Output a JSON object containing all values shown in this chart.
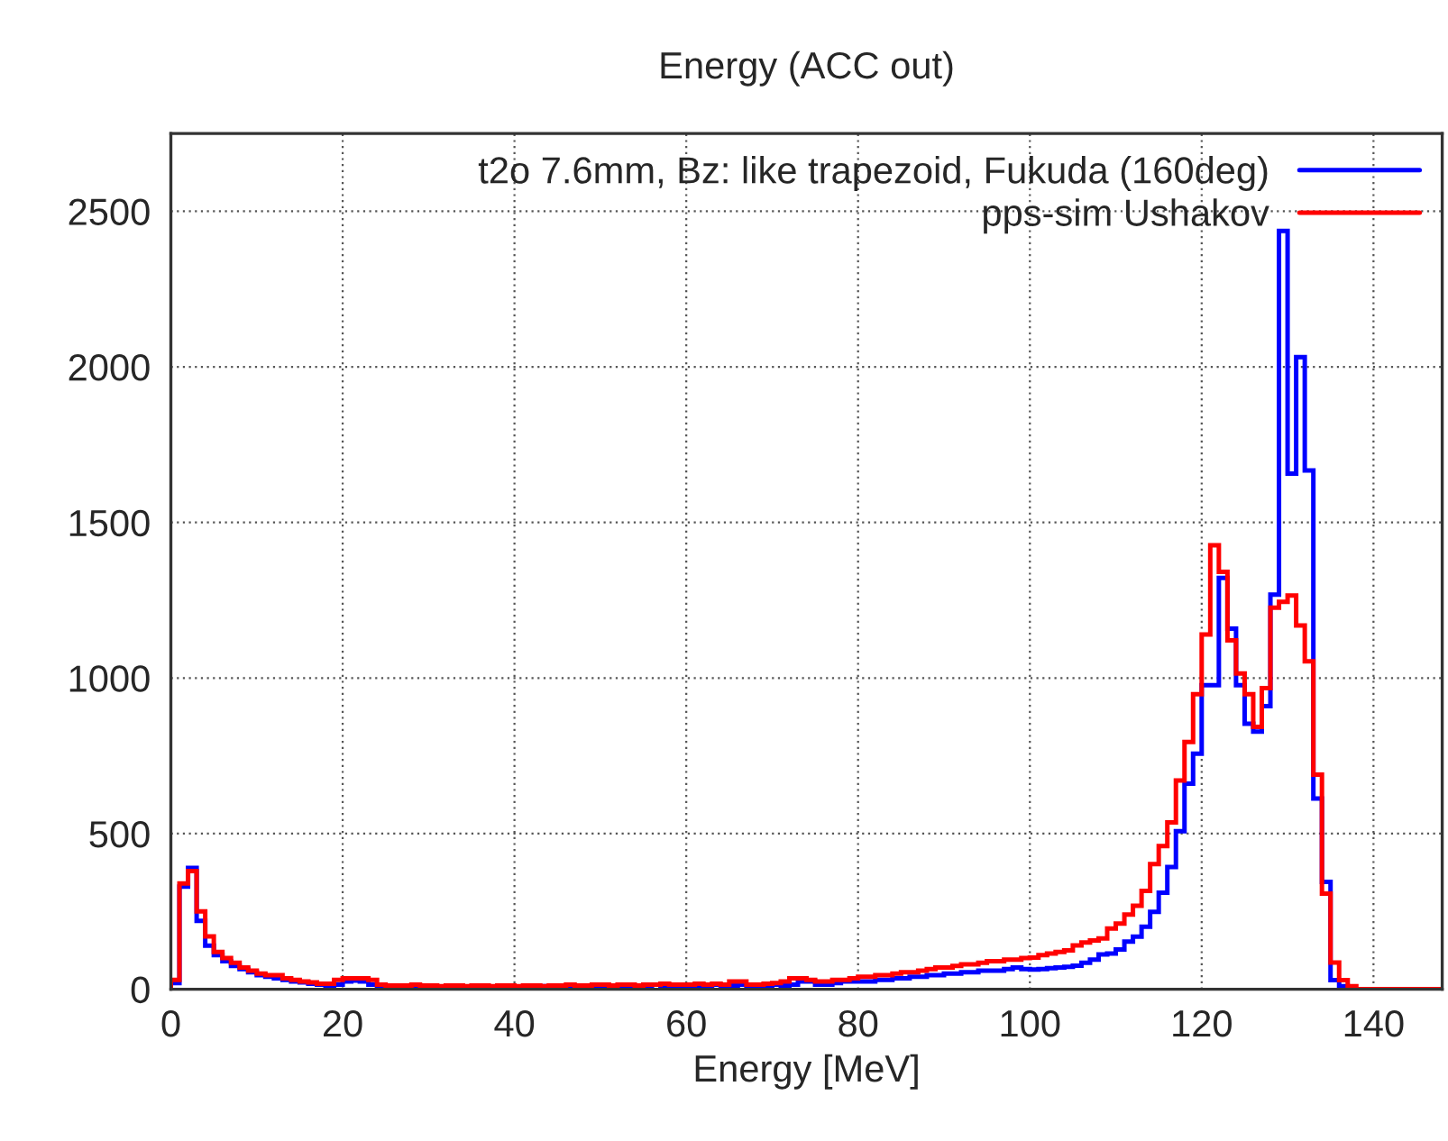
{
  "chart_data": {
    "type": "histogram",
    "title": "Energy (ACC out)",
    "xlabel": "Energy [MeV]",
    "bins": [
      0,
      1,
      2,
      3,
      4,
      5,
      6,
      7,
      8,
      9,
      10,
      11,
      12,
      13,
      14,
      15,
      16,
      17,
      18,
      19,
      20,
      21,
      22,
      23,
      24,
      25,
      26,
      27,
      28,
      29,
      30,
      31,
      32,
      33,
      34,
      35,
      36,
      37,
      38,
      39,
      40,
      41,
      42,
      43,
      44,
      45,
      46,
      47,
      48,
      49,
      50,
      51,
      52,
      53,
      54,
      55,
      56,
      57,
      58,
      59,
      60,
      61,
      62,
      63,
      64,
      65,
      66,
      67,
      68,
      69,
      70,
      71,
      72,
      73,
      74,
      75,
      76,
      77,
      78,
      79,
      80,
      81,
      82,
      83,
      84,
      85,
      86,
      87,
      88,
      89,
      90,
      91,
      92,
      93,
      94,
      95,
      96,
      97,
      98,
      99,
      100,
      101,
      102,
      103,
      104,
      105,
      106,
      107,
      108,
      109,
      110,
      111,
      112,
      113,
      114,
      115,
      116,
      117,
      118,
      119,
      120,
      121,
      122,
      123,
      124,
      125,
      126,
      127,
      128,
      129,
      130,
      131,
      132,
      133,
      134,
      135,
      136,
      137,
      138,
      139,
      140,
      141,
      142,
      143,
      144,
      145,
      146,
      147,
      148
    ],
    "series": [
      {
        "name": "t2o 7.6mm, Bz: like trapezoid, Fukuda (160deg)",
        "color": "#0000ff",
        "values": [
          20,
          330,
          390,
          220,
          140,
          110,
          90,
          75,
          65,
          55,
          45,
          40,
          35,
          30,
          25,
          22,
          18,
          15,
          12,
          15,
          25,
          28,
          25,
          15,
          10,
          8,
          8,
          8,
          8,
          8,
          8,
          8,
          8,
          8,
          8,
          8,
          8,
          8,
          10,
          8,
          8,
          8,
          8,
          10,
          8,
          8,
          10,
          8,
          8,
          10,
          10,
          8,
          10,
          12,
          10,
          10,
          15,
          12,
          10,
          12,
          12,
          10,
          12,
          15,
          12,
          12,
          15,
          12,
          10,
          12,
          15,
          12,
          15,
          25,
          25,
          15,
          15,
          20,
          25,
          25,
          25,
          25,
          30,
          30,
          35,
          35,
          40,
          40,
          45,
          45,
          50,
          50,
          55,
          55,
          60,
          60,
          60,
          65,
          70,
          65,
          63,
          65,
          68,
          70,
          72,
          76,
          85,
          95,
          112,
          115,
          128,
          153,
          169,
          201,
          249,
          310,
          393,
          508,
          661,
          757,
          977,
          977,
          1322,
          1159,
          977,
          853,
          828,
          910,
          1268,
          2437,
          1657,
          2031,
          1667,
          613,
          345,
          29,
          10,
          0,
          0,
          0,
          0,
          0,
          0,
          0,
          0,
          0,
          0,
          0
        ]
      },
      {
        "name": "pps-sim Ushakov",
        "color": "#ff0000",
        "values": [
          30,
          340,
          380,
          250,
          170,
          120,
          100,
          85,
          70,
          60,
          50,
          45,
          45,
          35,
          30,
          25,
          22,
          18,
          18,
          30,
          35,
          35,
          35,
          30,
          15,
          12,
          12,
          12,
          15,
          12,
          12,
          10,
          12,
          12,
          10,
          12,
          12,
          10,
          12,
          12,
          10,
          12,
          12,
          10,
          12,
          12,
          15,
          12,
          12,
          15,
          15,
          12,
          15,
          15,
          12,
          15,
          15,
          18,
          15,
          15,
          15,
          18,
          15,
          18,
          15,
          25,
          25,
          15,
          15,
          18,
          20,
          25,
          35,
          35,
          30,
          25,
          25,
          30,
          30,
          35,
          40,
          40,
          45,
          45,
          50,
          55,
          55,
          60,
          65,
          70,
          70,
          75,
          80,
          80,
          85,
          90,
          90,
          95,
          95,
          100,
          102,
          110,
          115,
          120,
          125,
          141,
          150,
          157,
          163,
          195,
          211,
          240,
          268,
          316,
          402,
          460,
          536,
          671,
          795,
          948,
          1140,
          1427,
          1341,
          1121,
          1015,
          948,
          843,
          968,
          1226,
          1245,
          1265,
          1169,
          1054,
          690,
          307,
          86,
          29,
          10,
          0,
          0,
          0,
          0,
          0,
          0,
          0,
          0,
          0,
          0
        ]
      }
    ],
    "xlim": [
      0,
      148
    ],
    "xticks": [
      0,
      20,
      40,
      60,
      80,
      100,
      120,
      140
    ],
    "ylim": [
      0,
      2750
    ],
    "yticks": [
      0,
      500,
      1000,
      1500,
      2000,
      2500
    ],
    "grid": true,
    "legend": "top right"
  }
}
